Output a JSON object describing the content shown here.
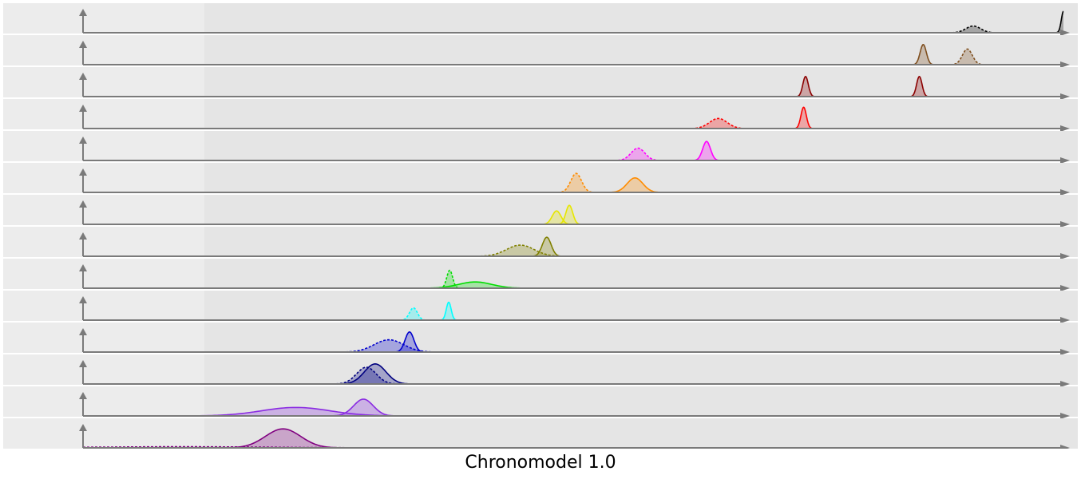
{
  "footer": {
    "label": "Chronomodel 1.0"
  },
  "chart_data": {
    "type": "area",
    "grid": false,
    "legend": "none",
    "xlim": [
      0,
      100
    ],
    "rows": [
      {
        "color": "#000000",
        "densities": [
          {
            "mu": 90.8,
            "sigma": 0.75,
            "amp": 0.3,
            "style": "dashed"
          },
          {
            "mu": 100.0,
            "sigma": 0.22,
            "amp": 0.95,
            "style": "solid"
          }
        ]
      },
      {
        "color": "#7f4f1f",
        "densities": [
          {
            "mu": 85.7,
            "sigma": 0.32,
            "amp": 0.9,
            "style": "solid"
          },
          {
            "mu": 90.2,
            "sigma": 0.5,
            "amp": 0.7,
            "style": "dashed"
          }
        ]
      },
      {
        "color": "#8b0000",
        "densities": [
          {
            "mu": 73.7,
            "sigma": 0.28,
            "amp": 0.9,
            "style": "solid"
          },
          {
            "mu": 85.3,
            "sigma": 0.28,
            "amp": 0.9,
            "style": "solid"
          }
        ]
      },
      {
        "color": "#ff0000",
        "densities": [
          {
            "mu": 64.8,
            "sigma": 0.9,
            "amp": 0.45,
            "style": "dashed"
          },
          {
            "mu": 73.5,
            "sigma": 0.28,
            "amp": 0.95,
            "style": "solid"
          }
        ]
      },
      {
        "color": "#ff00ff",
        "densities": [
          {
            "mu": 56.6,
            "sigma": 0.7,
            "amp": 0.55,
            "style": "dashed"
          },
          {
            "mu": 63.6,
            "sigma": 0.4,
            "amp": 0.85,
            "style": "solid"
          }
        ]
      },
      {
        "color": "#ff8c00",
        "densities": [
          {
            "mu": 50.3,
            "sigma": 0.55,
            "amp": 0.85,
            "style": "dashed"
          },
          {
            "mu": 56.3,
            "sigma": 0.8,
            "amp": 0.65,
            "style": "solid"
          }
        ]
      },
      {
        "color": "#e6e600",
        "densities": [
          {
            "mu": 48.3,
            "sigma": 0.45,
            "amp": 0.6,
            "style": "solid"
          },
          {
            "mu": 49.6,
            "sigma": 0.35,
            "amp": 0.85,
            "style": "solid"
          }
        ]
      },
      {
        "color": "#808000",
        "densities": [
          {
            "mu": 44.6,
            "sigma": 1.4,
            "amp": 0.5,
            "style": "dashed"
          },
          {
            "mu": 47.3,
            "sigma": 0.45,
            "amp": 0.85,
            "style": "solid"
          }
        ]
      },
      {
        "color": "#00dd00",
        "densities": [
          {
            "mu": 37.4,
            "sigma": 0.3,
            "amp": 0.8,
            "style": "dashed"
          },
          {
            "mu": 40.0,
            "sigma": 1.7,
            "amp": 0.28,
            "style": "solid"
          }
        ]
      },
      {
        "color": "#00ffff",
        "densities": [
          {
            "mu": 33.7,
            "sigma": 0.4,
            "amp": 0.55,
            "style": "dashed"
          },
          {
            "mu": 37.3,
            "sigma": 0.25,
            "amp": 0.8,
            "style": "solid"
          }
        ]
      },
      {
        "color": "#0000cd",
        "densities": [
          {
            "mu": 31.2,
            "sigma": 1.5,
            "amp": 0.55,
            "style": "dashed"
          },
          {
            "mu": 33.3,
            "sigma": 0.45,
            "amp": 0.9,
            "style": "solid"
          }
        ]
      },
      {
        "color": "#000080",
        "densities": [
          {
            "mu": 28.9,
            "sigma": 1.0,
            "amp": 0.75,
            "style": "dashed"
          },
          {
            "mu": 29.8,
            "sigma": 1.1,
            "amp": 0.9,
            "style": "solid"
          }
        ]
      },
      {
        "color": "#8a2be2",
        "densities": [
          {
            "mu": 21.7,
            "sigma": 3.5,
            "amp": 0.38,
            "style": "solid"
          },
          {
            "mu": 28.6,
            "sigma": 1.0,
            "amp": 0.75,
            "style": "solid"
          }
        ]
      },
      {
        "color": "#800080",
        "densities": [
          {
            "mu": 20.4,
            "sigma": 1.8,
            "amp": 0.85,
            "style": "solid"
          },
          {
            "mu": 10.0,
            "sigma": 9.0,
            "amp": 0.05,
            "style": "dashed"
          }
        ]
      }
    ]
  }
}
